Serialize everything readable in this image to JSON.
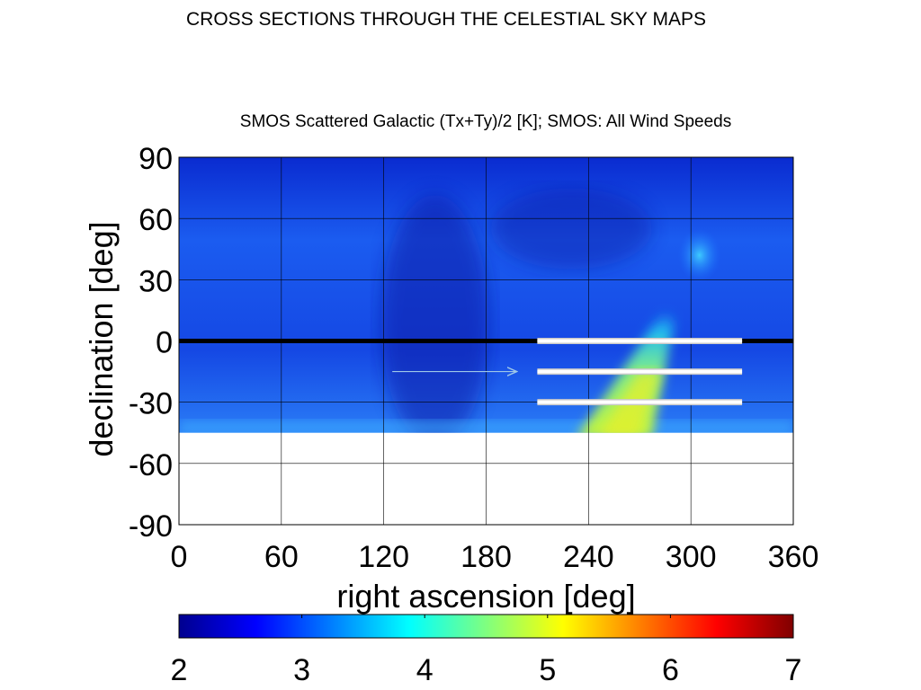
{
  "slide": {
    "title": "CROSS SECTIONS THROUGH THE CELESTIAL SKY MAPS"
  },
  "chart_data": {
    "type": "heatmap",
    "title": "SMOS Scattered Galactic (Tx+Ty)/2 [K]; SMOS: All Wind Speeds",
    "xlabel": "right ascension [deg]",
    "ylabel": "declination [deg]",
    "xlim": [
      0,
      360
    ],
    "ylim": [
      -90,
      90
    ],
    "x_ticks": [
      "0",
      "60",
      "120",
      "180",
      "240",
      "300",
      "360"
    ],
    "y_ticks": [
      "90",
      "60",
      "30",
      "0",
      "-30",
      "-60",
      "-90"
    ],
    "grid": true,
    "data_coverage_min_declination": -45,
    "features": [
      {
        "name": "galactic plane band",
        "ra_start": 255,
        "dec_start": -45,
        "ra_end": 285,
        "dec_end": 10,
        "peak_value": 4.9
      },
      {
        "name": "northern galactic spot",
        "ra": 305,
        "dec": 42,
        "peak_value": 3.6
      }
    ],
    "background_value": 2.9,
    "cross_section_lines": [
      {
        "declination": 0,
        "ra_start": 0,
        "ra_end": 360,
        "color": "#000000"
      },
      {
        "declination": 0,
        "ra_start": 210,
        "ra_end": 330,
        "color": "#ffffff"
      },
      {
        "declination": -15,
        "ra_start": 210,
        "ra_end": 330,
        "color": "#ffffff"
      },
      {
        "declination": -30,
        "ra_start": 210,
        "ra_end": 330,
        "color": "#ffffff"
      }
    ],
    "arrow": {
      "ra_start": 125,
      "ra_end": 198,
      "declination": -15,
      "color": "#9ec7e8"
    },
    "colorbar": {
      "min": 2,
      "max": 7,
      "ticks": [
        "2",
        "3",
        "4",
        "5",
        "6",
        "7"
      ],
      "colormap": "jet"
    }
  }
}
